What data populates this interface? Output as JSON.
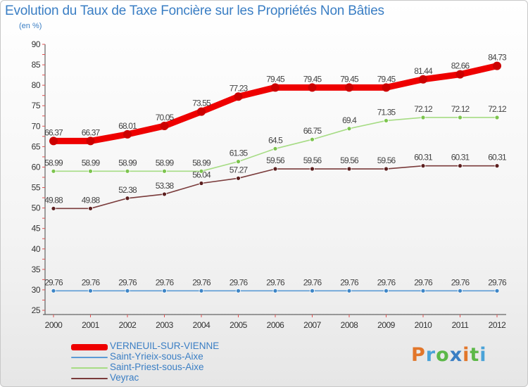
{
  "title": "Evolution du Taux de Taxe Foncière sur les Propriétés Non Bâties",
  "unit": "(en %)",
  "logo": {
    "text": "Proxiti",
    "colors": [
      "#e2762a",
      "#4aa3d8",
      "#5cb848",
      "#3a7ec4",
      "#e2762a",
      "#5cb848",
      "#4aa3d8"
    ]
  },
  "chart_data": {
    "type": "line",
    "title": "Evolution du Taux de Taxe Foncière sur les Propriétés Non Bâties",
    "ylabel": "(en %)",
    "xlabel": "",
    "ylim": [
      25,
      90
    ],
    "yticks": [
      25,
      30,
      35,
      40,
      45,
      50,
      55,
      60,
      65,
      70,
      75,
      80,
      85,
      90
    ],
    "grid": false,
    "legend": "bottom-left",
    "categories": [
      "2000",
      "2001",
      "2002",
      "2003",
      "2004",
      "2005",
      "2006",
      "2007",
      "2008",
      "2009",
      "2010",
      "2011",
      "2012"
    ],
    "series": [
      {
        "name": "VERNEUIL-SUR-VIENNE",
        "color": "#ee0000",
        "marker": "#cc0000",
        "values": [
          66.37,
          66.37,
          68.01,
          70.05,
          73.55,
          77.23,
          79.45,
          79.45,
          79.45,
          79.45,
          81.44,
          82.66,
          84.73
        ],
        "labels": [
          "66.37",
          "66.37",
          "68.01",
          "70.05",
          "73.55",
          "77.23",
          "79.45",
          "79.45",
          "79.45",
          "79.45",
          "81.44",
          "82.66",
          "84.73"
        ]
      },
      {
        "name": "Saint-Yrieix-sous-Aixe",
        "color": "#5b9bd5",
        "marker": "#3d85c6",
        "values": [
          29.76,
          29.76,
          29.76,
          29.76,
          29.76,
          29.76,
          29.76,
          29.76,
          29.76,
          29.76,
          29.76,
          29.76,
          29.76
        ],
        "labels": [
          "29.76",
          "29.76",
          "29.76",
          "29.76",
          "29.76",
          "29.76",
          "29.76",
          "29.76",
          "29.76",
          "29.76",
          "29.76",
          "29.76",
          "29.76"
        ]
      },
      {
        "name": "Saint-Priest-sous-Aixe",
        "color": "#a6dc84",
        "marker": "#7cc44e",
        "values": [
          58.99,
          58.99,
          58.99,
          58.99,
          58.99,
          61.35,
          64.5,
          66.75,
          69.4,
          71.35,
          72.12,
          72.12,
          72.12
        ],
        "labels": [
          "58.99",
          "58.99",
          "58.99",
          "58.99",
          "58.99",
          "61.35",
          "64.5",
          "66.75",
          "69.4",
          "71.35",
          "72.12",
          "72.12",
          "72.12"
        ]
      },
      {
        "name": "Veyrac",
        "color": "#7a3b3b",
        "marker": "#5c1f1f",
        "values": [
          49.88,
          49.88,
          52.38,
          53.38,
          56.04,
          57.27,
          59.56,
          59.56,
          59.56,
          59.56,
          60.31,
          60.31,
          60.31
        ],
        "labels": [
          "49.88",
          "49.88",
          "52.38",
          "53.38",
          "56.04",
          "57.27",
          "59.56",
          "59.56",
          "59.56",
          "59.56",
          "60.31",
          "60.31",
          "60.31"
        ]
      }
    ]
  }
}
